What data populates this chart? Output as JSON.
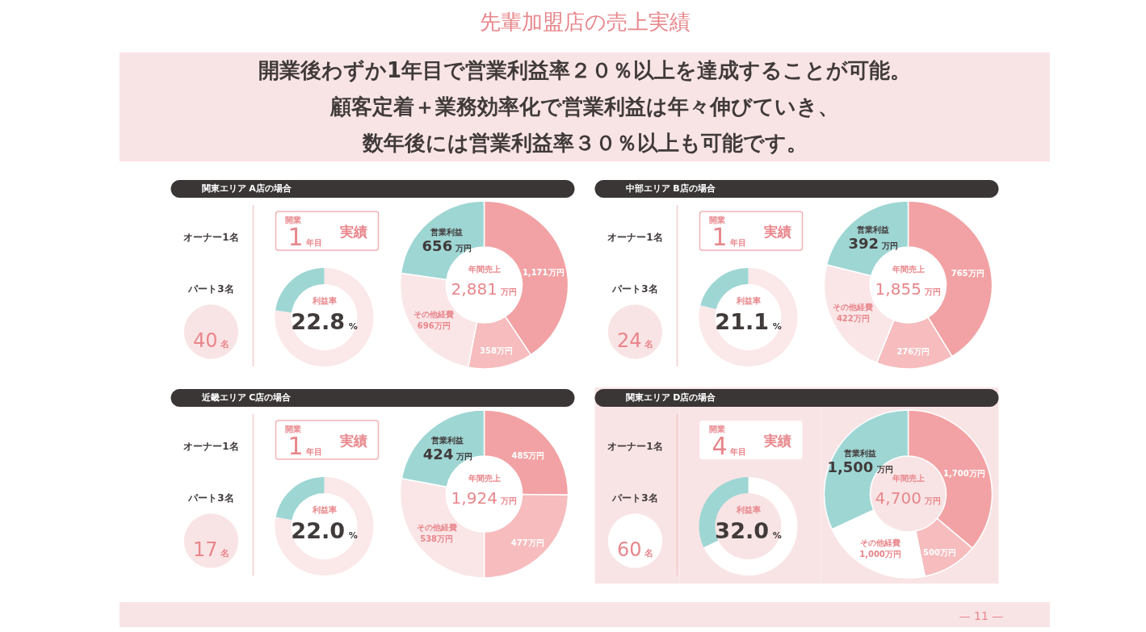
{
  "chart_data": [
    {
      "type": "other",
      "title": "先輩加盟店の売上実績",
      "annotations": [
        "開業後わずか1年目で営業利益率２０％以上を達成することが可能。",
        "顧客定着＋業務効率化で営業利益は年々伸びていき、",
        "数年後には営業利益率３０％以上も可能です。"
      ]
    },
    {
      "type": "other",
      "title": "関東エリア A店の場合",
      "annotations": [
        "オーナー1名",
        "パート3名",
        "40名"
      ]
    },
    {
      "type": "donut",
      "title": "開業1年目実績",
      "categories": [
        null,
        null
      ],
      "values": [
        77.2,
        22.8
      ],
      "colors": [
        "#fbe8e9",
        "#9ed6d4"
      ],
      "annotations": [
        "利益率",
        "22.8%"
      ]
    },
    {
      "type": "donut",
      "categories": [
        null,
        null,
        "その他経費",
        "営業利益"
      ],
      "values": [
        1171,
        358,
        696,
        656
      ],
      "colors": [
        "#f2a2a4",
        "#f6bcbe",
        "#fae6e7",
        "#9ed6d4"
      ],
      "value_labels": [
        "1,171万円",
        "358万円",
        "696万円",
        "656万円"
      ],
      "annotations": [
        "年間売上",
        "2,881万円"
      ]
    },
    {
      "type": "other",
      "title": "中部エリア B店の場合",
      "annotations": [
        "オーナー1名",
        "パート3名",
        "24名"
      ]
    },
    {
      "type": "donut",
      "title": "開業1年目実績",
      "categories": [
        null,
        null
      ],
      "values": [
        78.9,
        21.1
      ],
      "colors": [
        "#fbe8e9",
        "#9ed6d4"
      ],
      "annotations": [
        "利益率",
        "21.1%"
      ]
    },
    {
      "type": "donut",
      "categories": [
        null,
        null,
        "その他経費",
        "営業利益"
      ],
      "values": [
        765,
        276,
        422,
        392
      ],
      "colors": [
        "#f2a2a4",
        "#f6bcbe",
        "#fae6e7",
        "#9ed6d4"
      ],
      "value_labels": [
        "765万円",
        "276万円",
        "422万円",
        "392万円"
      ],
      "annotations": [
        "年間売上",
        "1,855万円"
      ]
    },
    {
      "type": "other",
      "title": "近畿エリア C店の場合",
      "annotations": [
        "オーナー1名",
        "パート3名",
        "17名"
      ]
    },
    {
      "type": "donut",
      "title": "開業1年目実績",
      "categories": [
        null,
        null
      ],
      "values": [
        78.0,
        22.0
      ],
      "colors": [
        "#fbe8e9",
        "#9ed6d4"
      ],
      "annotations": [
        "利益率",
        "22.0%"
      ]
    },
    {
      "type": "donut",
      "categories": [
        null,
        null,
        "その他経費",
        "営業利益"
      ],
      "values": [
        485,
        477,
        538,
        424
      ],
      "colors": [
        "#f2a2a4",
        "#f6bcbe",
        "#fae6e7",
        "#9ed6d4"
      ],
      "value_labels": [
        "485万円",
        "477万円",
        "538万円",
        "424万円"
      ],
      "annotations": [
        "年間売上",
        "1,924万円"
      ]
    },
    {
      "type": "other",
      "title": "関東エリア D店の場合",
      "annotations": [
        "オーナー1名",
        "パート3名",
        "60名"
      ]
    },
    {
      "type": "donut",
      "title": "開業4年目実績",
      "categories": [
        null,
        null
      ],
      "values": [
        68.0,
        32.0
      ],
      "colors": [
        "#ffffff",
        "#9ed6d4"
      ],
      "annotations": [
        "利益率",
        "32.0%"
      ]
    },
    {
      "type": "donut",
      "categories": [
        null,
        null,
        "その他経費",
        "営業利益"
      ],
      "values": [
        1700,
        500,
        1000,
        1500
      ],
      "colors": [
        "#f2a2a4",
        "#f6bcbe",
        "#ffffff",
        "#9ed6d4"
      ],
      "value_labels": [
        "1,700万円",
        "500万円",
        "1,000万円",
        "1,500万円"
      ],
      "annotations": [
        "年間売上",
        "4,700万円"
      ]
    },
    {
      "type": "other",
      "annotations": [
        "— 11 —"
      ]
    }
  ]
}
